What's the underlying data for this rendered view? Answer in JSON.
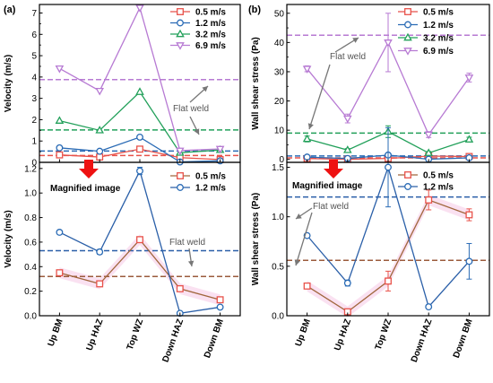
{
  "figure": {
    "panel_a_label": "(a)",
    "panel_b_label": "(b)",
    "categories": [
      "Up BM",
      "Up HAZ",
      "Top WZ",
      "Down HAZ",
      "Down BM"
    ],
    "colors": {
      "s05": "#e8524a",
      "s12": "#2a6bb5",
      "s32": "#22a05a",
      "s69": "#b77ad3",
      "flat_upper_grey": "#ff5555",
      "brown_line": "#a0663c",
      "brown_dash": "#9b5b3c",
      "pink_band": "#f6c9e6",
      "blue_line": "#2a5fa8",
      "arrow_red": "#ee1111",
      "arrow_grey": "#777777"
    },
    "annotations": {
      "flat_weld": "Flat weld",
      "magnified": "Magnified image"
    }
  },
  "chart_data": [
    {
      "id": "a-top",
      "type": "line",
      "ylabel": "Velocity (m/s)",
      "ylim": [
        0,
        7.4
      ],
      "yticks": [
        0,
        1,
        2,
        3,
        4,
        5,
        6,
        7
      ],
      "categories": [
        "Up BM",
        "Up HAZ",
        "Top WZ",
        "Down HAZ",
        "Down BM"
      ],
      "legend_position": "top-right",
      "series": [
        {
          "name": "0.5 m/s",
          "marker": "square",
          "color": "#e8524a",
          "values": [
            0.35,
            0.25,
            0.62,
            0.22,
            0.13
          ],
          "flat_weld": 0.32
        },
        {
          "name": "1.2 m/s",
          "marker": "circle",
          "color": "#2a6bb5",
          "values": [
            0.68,
            0.52,
            1.18,
            0.02,
            0.07
          ],
          "flat_weld": 0.53
        },
        {
          "name": "3.2 m/s",
          "marker": "triangle-up",
          "color": "#22a05a",
          "values": [
            1.95,
            1.5,
            3.3,
            0.45,
            0.58
          ],
          "flat_weld": 1.52
        },
        {
          "name": "6.9 m/s",
          "marker": "triangle-down",
          "color": "#b77ad3",
          "values": [
            4.4,
            3.35,
            7.25,
            0.55,
            0.63
          ],
          "flat_weld": 3.88
        }
      ]
    },
    {
      "id": "a-bottom",
      "type": "line",
      "ylabel": "Velocity (m/s)",
      "ylim": [
        0,
        1.25
      ],
      "yticks": [
        0.0,
        0.2,
        0.4,
        0.6,
        0.8,
        1.0,
        1.2
      ],
      "categories": [
        "Up BM",
        "Up HAZ",
        "Top WZ",
        "Down HAZ",
        "Down BM"
      ],
      "legend_position": "top-right",
      "series": [
        {
          "name": "0.5 m/s",
          "marker": "square",
          "color": "#e8524a",
          "values": [
            0.35,
            0.26,
            0.62,
            0.22,
            0.13
          ],
          "errors": [
            0.02,
            0.02,
            0.015,
            0.02,
            0.02
          ],
          "flat_weld": 0.32
        },
        {
          "name": "1.2 m/s",
          "marker": "circle",
          "color": "#2a6bb5",
          "values": [
            0.68,
            0.52,
            1.18,
            0.02,
            0.07
          ],
          "errors": [
            0.015,
            0.02,
            0.03,
            0.01,
            0.01
          ],
          "flat_weld": 0.53
        }
      ]
    },
    {
      "id": "b-top",
      "type": "line",
      "ylabel": "Wall shear stress (Pa)",
      "ylim": [
        -1,
        53
      ],
      "yticks": [
        0,
        10,
        20,
        30,
        40,
        50
      ],
      "categories": [
        "Up BM",
        "Up HAZ",
        "Top WZ",
        "Down HAZ",
        "Down BM"
      ],
      "legend_position": "top-right",
      "series": [
        {
          "name": "0.5 m/s",
          "marker": "square",
          "color": "#e8524a",
          "values": [
            0.3,
            0.05,
            0.35,
            1.15,
            1.0
          ],
          "flat_weld": 0.55
        },
        {
          "name": "1.2 m/s",
          "marker": "circle",
          "color": "#2a6bb5",
          "values": [
            0.8,
            0.33,
            1.5,
            0.08,
            0.55
          ],
          "flat_weld": 1.2
        },
        {
          "name": "3.2 m/s",
          "marker": "triangle-up",
          "color": "#22a05a",
          "values": [
            7.0,
            3.2,
            9.5,
            2.2,
            6.8
          ],
          "errors": [
            1.0,
            0.5,
            2.0,
            0.5,
            0.8
          ],
          "flat_weld": 9.0
        },
        {
          "name": "6.9 m/s",
          "marker": "triangle-down",
          "color": "#b77ad3",
          "values": [
            31.0,
            14.0,
            40.0,
            8.5,
            28.0
          ],
          "errors": [
            1.0,
            1.5,
            10.0,
            1.0,
            1.5
          ],
          "flat_weld": 42.5
        }
      ]
    },
    {
      "id": "b-bottom",
      "type": "line",
      "ylabel": "Wall shear stress (Pa)",
      "ylim": [
        0,
        1.55
      ],
      "yticks": [
        0.0,
        0.5,
        1.0,
        1.5
      ],
      "categories": [
        "Up BM",
        "Up HAZ",
        "Top WZ",
        "Down HAZ",
        "Down BM"
      ],
      "legend_position": "top-right",
      "series": [
        {
          "name": "0.5 m/s",
          "marker": "square",
          "color": "#e8524a",
          "values": [
            0.3,
            0.04,
            0.35,
            1.17,
            1.02
          ],
          "errors": [
            0.015,
            0.015,
            0.1,
            0.1,
            0.06
          ],
          "flat_weld": 0.56
        },
        {
          "name": "1.2 m/s",
          "marker": "circle",
          "color": "#2a6bb5",
          "values": [
            0.81,
            0.33,
            1.5,
            0.09,
            0.55
          ],
          "errors": [
            0.015,
            0.03,
            0.4,
            0.01,
            0.18
          ],
          "flat_weld": 1.2
        }
      ]
    }
  ]
}
